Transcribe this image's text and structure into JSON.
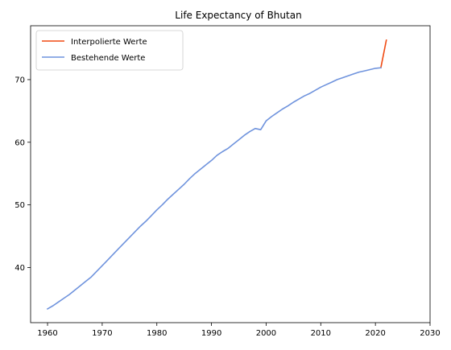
{
  "chart_data": {
    "type": "line",
    "title": "Life Expectancy of Bhutan",
    "xlabel": "",
    "ylabel": "",
    "xlim": [
      1956.9,
      2030
    ],
    "ylim": [
      31.2,
      78.6
    ],
    "xticks": [
      1960,
      1970,
      1980,
      1990,
      2000,
      2010,
      2020,
      2030
    ],
    "yticks": [
      40,
      50,
      60,
      70
    ],
    "grid": false,
    "legend_position": "top-left",
    "series": [
      {
        "name": "Interpolierte Werte",
        "color": "#f04a12",
        "x": [
          2021,
          2022
        ],
        "y": [
          71.9,
          76.3
        ]
      },
      {
        "name": "Bestehende Werte",
        "color": "#6f93dd",
        "x": [
          1960,
          1961,
          1962,
          1963,
          1964,
          1965,
          1966,
          1967,
          1968,
          1969,
          1970,
          1971,
          1972,
          1973,
          1974,
          1975,
          1976,
          1977,
          1978,
          1979,
          1980,
          1981,
          1982,
          1983,
          1984,
          1985,
          1986,
          1987,
          1988,
          1989,
          1990,
          1991,
          1992,
          1993,
          1994,
          1995,
          1996,
          1997,
          1998,
          1999,
          2000,
          2001,
          2002,
          2003,
          2004,
          2005,
          2006,
          2007,
          2008,
          2009,
          2010,
          2011,
          2012,
          2013,
          2014,
          2015,
          2016,
          2017,
          2018,
          2019,
          2020,
          2021
        ],
        "y": [
          33.4,
          33.9,
          34.5,
          35.1,
          35.7,
          36.4,
          37.1,
          37.8,
          38.5,
          39.4,
          40.3,
          41.2,
          42.1,
          43.0,
          43.9,
          44.8,
          45.7,
          46.6,
          47.4,
          48.3,
          49.2,
          50.0,
          50.9,
          51.7,
          52.5,
          53.3,
          54.2,
          55.0,
          55.7,
          56.4,
          57.1,
          57.9,
          58.5,
          59.0,
          59.7,
          60.4,
          61.1,
          61.7,
          62.2,
          62.0,
          63.4,
          64.1,
          64.7,
          65.3,
          65.8,
          66.4,
          66.9,
          67.4,
          67.8,
          68.3,
          68.8,
          69.2,
          69.6,
          70.0,
          70.3,
          70.6,
          70.9,
          71.2,
          71.4,
          71.6,
          71.8,
          71.9
        ]
      }
    ]
  }
}
